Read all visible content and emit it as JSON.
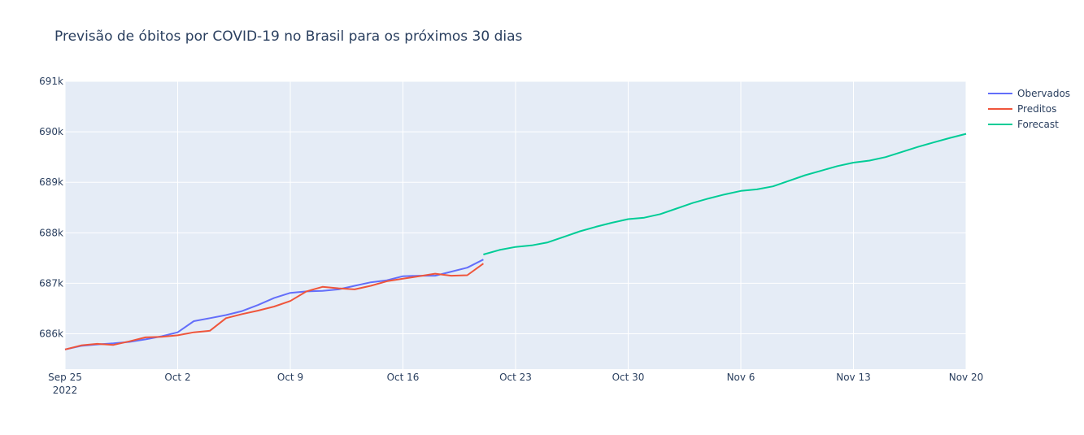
{
  "chart_data": {
    "type": "line",
    "title": "Previsão de óbitos por COVID-19 no Brasil para os próximos 30 dias",
    "xlabel": "",
    "ylabel": "",
    "x_range": [
      "2022-09-25",
      "2022-11-20"
    ],
    "ylim": [
      685300,
      691000
    ],
    "x_ticks": [
      {
        "date": "2022-09-25",
        "label": "Sep 25",
        "sublabel": "2022"
      },
      {
        "date": "2022-10-02",
        "label": "Oct 2"
      },
      {
        "date": "2022-10-09",
        "label": "Oct 9"
      },
      {
        "date": "2022-10-16",
        "label": "Oct 16"
      },
      {
        "date": "2022-10-23",
        "label": "Oct 23"
      },
      {
        "date": "2022-10-30",
        "label": "Oct 30"
      },
      {
        "date": "2022-11-06",
        "label": "Nov 6"
      },
      {
        "date": "2022-11-13",
        "label": "Nov 13"
      },
      {
        "date": "2022-11-20",
        "label": "Nov 20"
      }
    ],
    "y_ticks": [
      {
        "value": 686000,
        "label": "686k"
      },
      {
        "value": 687000,
        "label": "687k"
      },
      {
        "value": 688000,
        "label": "688k"
      },
      {
        "value": 689000,
        "label": "689k"
      },
      {
        "value": 690000,
        "label": "690k"
      },
      {
        "value": 691000,
        "label": "691k"
      }
    ],
    "grid": true,
    "legend_position": "top-right",
    "colors": {
      "plot_bg": "#e5ecf6",
      "grid": "#ffffff"
    },
    "series": [
      {
        "name": "Obervados",
        "color": "#636efa",
        "x": [
          "2022-09-25",
          "2022-09-26",
          "2022-09-27",
          "2022-09-28",
          "2022-09-29",
          "2022-09-30",
          "2022-10-01",
          "2022-10-02",
          "2022-10-03",
          "2022-10-04",
          "2022-10-05",
          "2022-10-06",
          "2022-10-07",
          "2022-10-08",
          "2022-10-09",
          "2022-10-10",
          "2022-10-11",
          "2022-10-12",
          "2022-10-13",
          "2022-10-14",
          "2022-10-15",
          "2022-10-16",
          "2022-10-17",
          "2022-10-18",
          "2022-10-19",
          "2022-10-20",
          "2022-10-21"
        ],
        "values": [
          685690,
          685760,
          685790,
          685810,
          685840,
          685890,
          685950,
          686030,
          686250,
          686310,
          686370,
          686450,
          686570,
          686710,
          686810,
          686840,
          686850,
          686880,
          686950,
          687020,
          687060,
          687140,
          687150,
          687150,
          687230,
          687310,
          687470
        ]
      },
      {
        "name": "Preditos",
        "color": "#ef553b",
        "x": [
          "2022-09-25",
          "2022-09-26",
          "2022-09-27",
          "2022-09-28",
          "2022-09-29",
          "2022-09-30",
          "2022-10-01",
          "2022-10-02",
          "2022-10-03",
          "2022-10-04",
          "2022-10-05",
          "2022-10-06",
          "2022-10-07",
          "2022-10-08",
          "2022-10-09",
          "2022-10-10",
          "2022-10-11",
          "2022-10-12",
          "2022-10-13",
          "2022-10-14",
          "2022-10-15",
          "2022-10-16",
          "2022-10-17",
          "2022-10-18",
          "2022-10-19",
          "2022-10-20",
          "2022-10-21"
        ],
        "values": [
          685690,
          685770,
          685800,
          685780,
          685850,
          685930,
          685940,
          685970,
          686030,
          686060,
          686310,
          686390,
          686460,
          686540,
          686650,
          686840,
          686930,
          686900,
          686880,
          686950,
          687040,
          687090,
          687140,
          687190,
          687150,
          687160,
          687390
        ]
      },
      {
        "name": "Forecast",
        "color": "#00cc96",
        "x": [
          "2022-10-21",
          "2022-10-22",
          "2022-10-23",
          "2022-10-24",
          "2022-10-25",
          "2022-10-26",
          "2022-10-27",
          "2022-10-28",
          "2022-10-29",
          "2022-10-30",
          "2022-10-31",
          "2022-11-01",
          "2022-11-02",
          "2022-11-03",
          "2022-11-04",
          "2022-11-05",
          "2022-11-06",
          "2022-11-07",
          "2022-11-08",
          "2022-11-09",
          "2022-11-10",
          "2022-11-11",
          "2022-11-12",
          "2022-11-13",
          "2022-11-14",
          "2022-11-15",
          "2022-11-16",
          "2022-11-17",
          "2022-11-18",
          "2022-11-19",
          "2022-11-20"
        ],
        "values": [
          687570,
          687660,
          687720,
          687750,
          687810,
          687920,
          688030,
          688120,
          688200,
          688270,
          688300,
          688370,
          688480,
          688590,
          688680,
          688760,
          688830,
          688860,
          688920,
          689030,
          689140,
          689230,
          689320,
          689390,
          689430,
          689500,
          689600,
          689700,
          689790,
          689880,
          689960
        ]
      }
    ]
  }
}
